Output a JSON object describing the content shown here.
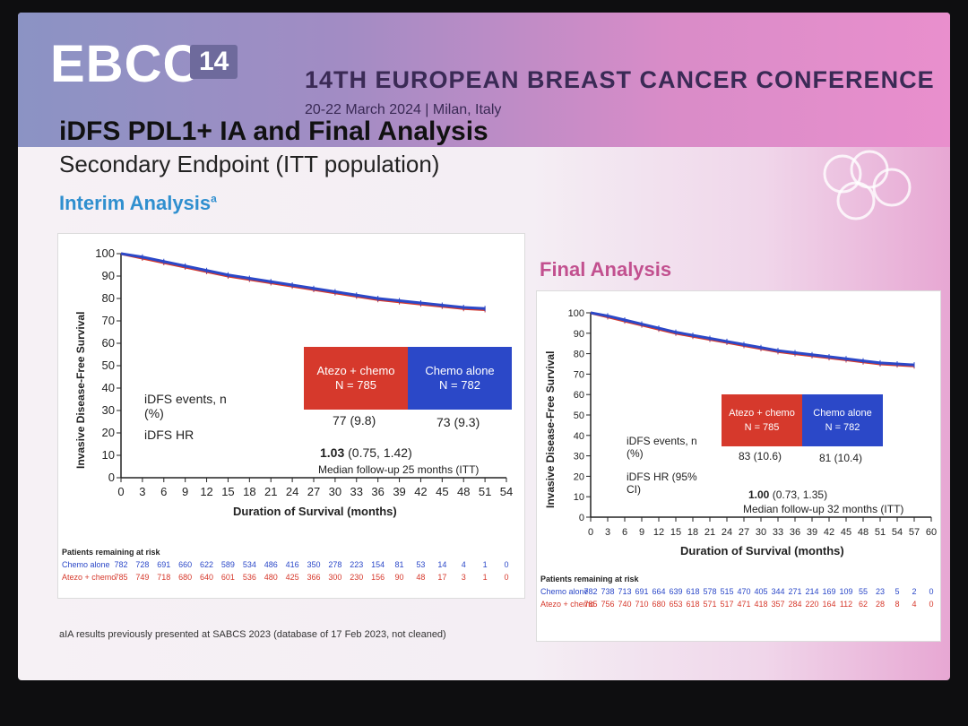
{
  "header": {
    "logo_text": "EBCC",
    "logo_number": "14",
    "conference_name": "14TH EUROPEAN BREAST CANCER CONFERENCE",
    "conference_date": "20-22 March 2024 | Milan, Italy"
  },
  "slide": {
    "title": "iDFS PDL1+ IA and Final Analysis",
    "subtitle": "Secondary Endpoint (ITT population)",
    "footnote": "aIA results previously presented at SABCS 2023 (database of 17 Feb 2023, not cleaned)"
  },
  "colors": {
    "atezo_red": "#d6392c",
    "chemo_blue": "#2b48c8",
    "ia_title": "#2f8fcf",
    "fa_title": "#c2508f"
  },
  "chart_data": [
    {
      "type": "line",
      "panel_title": "Interim Analysis",
      "panel_title_sup": "a",
      "ylabel": "Invasive Disease-Free Survival",
      "xlabel": "Duration of Survival (months)",
      "xlim": [
        0,
        54
      ],
      "ylim": [
        0,
        100
      ],
      "x_ticks": [
        0,
        3,
        6,
        9,
        12,
        15,
        18,
        21,
        24,
        27,
        30,
        33,
        36,
        39,
        42,
        45,
        48,
        51,
        54
      ],
      "y_ticks": [
        0,
        10,
        20,
        30,
        40,
        50,
        60,
        70,
        80,
        90,
        100
      ],
      "series": [
        {
          "name": "Atezo + chemo",
          "color": "#d6392c",
          "x": [
            0,
            3,
            6,
            9,
            12,
            15,
            18,
            21,
            24,
            27,
            30,
            33,
            36,
            39,
            42,
            45,
            48,
            51
          ],
          "y": [
            100,
            98,
            96,
            94,
            92,
            90,
            88.5,
            87,
            85.5,
            84,
            82.5,
            81,
            79.5,
            78.5,
            77.5,
            76.5,
            75.5,
            75
          ]
        },
        {
          "name": "Chemo alone",
          "color": "#2b48c8",
          "x": [
            0,
            3,
            6,
            9,
            12,
            15,
            18,
            21,
            24,
            27,
            30,
            33,
            36,
            39,
            42,
            45,
            48,
            51
          ],
          "y": [
            100,
            98.5,
            96.5,
            94.5,
            92.5,
            90.5,
            89,
            87.5,
            86,
            84.5,
            83,
            81.5,
            80,
            79,
            78,
            77,
            76,
            75.5
          ]
        }
      ],
      "legend": [
        {
          "label": "Atezo + chemo",
          "n": "N = 785"
        },
        {
          "label": "Chemo alone",
          "n": "N = 782"
        }
      ],
      "stats": {
        "events_label": "iDFS events, n (%)",
        "events_atezo": "77 (9.8)",
        "events_chemo": "73 (9.3)",
        "hr_label": "iDFS HR",
        "hr_value": "1.03",
        "hr_ci": "(0.75, 1.42)"
      },
      "followup": "Median follow-up 25 months (ITT)",
      "risk_table": {
        "header": "Patients remaining at risk",
        "rows": [
          {
            "label": "Chemo alone",
            "values": [
              "782",
              "728",
              "691",
              "660",
              "622",
              "589",
              "534",
              "486",
              "416",
              "350",
              "278",
              "223",
              "154",
              "81",
              "53",
              "14",
              "4",
              "1",
              "0"
            ]
          },
          {
            "label": "Atezo + chemo",
            "values": [
              "785",
              "749",
              "718",
              "680",
              "640",
              "601",
              "536",
              "480",
              "425",
              "366",
              "300",
              "230",
              "156",
              "90",
              "48",
              "17",
              "3",
              "1",
              "0"
            ]
          }
        ]
      }
    },
    {
      "type": "line",
      "panel_title": "Final Analysis",
      "ylabel": "Invasive Disease-Free Survival",
      "xlabel": "Duration of Survival (months)",
      "xlim": [
        0,
        60
      ],
      "ylim": [
        0,
        100
      ],
      "x_ticks": [
        0,
        3,
        6,
        9,
        12,
        15,
        18,
        21,
        24,
        27,
        30,
        33,
        36,
        39,
        42,
        45,
        48,
        51,
        54,
        57,
        60
      ],
      "y_ticks": [
        0,
        10,
        20,
        30,
        40,
        50,
        60,
        70,
        80,
        90,
        100
      ],
      "series": [
        {
          "name": "Atezo + chemo",
          "color": "#d6392c",
          "x": [
            0,
            3,
            6,
            9,
            12,
            15,
            18,
            21,
            24,
            27,
            30,
            33,
            36,
            39,
            42,
            45,
            48,
            51,
            54,
            57
          ],
          "y": [
            100,
            98,
            96,
            94,
            92,
            90,
            88.5,
            87,
            85.5,
            84,
            82.5,
            81,
            80,
            79,
            78,
            77,
            76,
            75,
            74.5,
            74
          ]
        },
        {
          "name": "Chemo alone",
          "color": "#2b48c8",
          "x": [
            0,
            3,
            6,
            9,
            12,
            15,
            18,
            21,
            24,
            27,
            30,
            33,
            36,
            39,
            42,
            45,
            48,
            51,
            54,
            57
          ],
          "y": [
            100,
            98.5,
            96.5,
            94.5,
            92.5,
            90.5,
            89,
            87.5,
            86,
            84.5,
            83,
            81.5,
            80.5,
            79.5,
            78.5,
            77.5,
            76.5,
            75.5,
            75,
            74.5
          ]
        }
      ],
      "legend": [
        {
          "label": "Atezo + chemo",
          "n": "N = 785"
        },
        {
          "label": "Chemo alone",
          "n": "N = 782"
        }
      ],
      "stats": {
        "events_label": "iDFS events, n (%)",
        "events_atezo": "83 (10.6)",
        "events_chemo": "81 (10.4)",
        "hr_label": "iDFS HR (95% CI)",
        "hr_value": "1.00",
        "hr_ci": "(0.73, 1.35)"
      },
      "followup": "Median follow-up 32 months (ITT)",
      "risk_table": {
        "header": "Patients remaining at risk",
        "rows": [
          {
            "label": "Chemo alone",
            "values": [
              "782",
              "738",
              "713",
              "691",
              "664",
              "639",
              "618",
              "578",
              "515",
              "470",
              "405",
              "344",
              "271",
              "214",
              "169",
              "109",
              "55",
              "23",
              "5",
              "2",
              "0"
            ]
          },
          {
            "label": "Atezo + chemo",
            "values": [
              "785",
              "756",
              "740",
              "710",
              "680",
              "653",
              "618",
              "571",
              "517",
              "471",
              "418",
              "357",
              "284",
              "220",
              "164",
              "112",
              "62",
              "28",
              "8",
              "4",
              "0"
            ]
          }
        ]
      }
    }
  ]
}
